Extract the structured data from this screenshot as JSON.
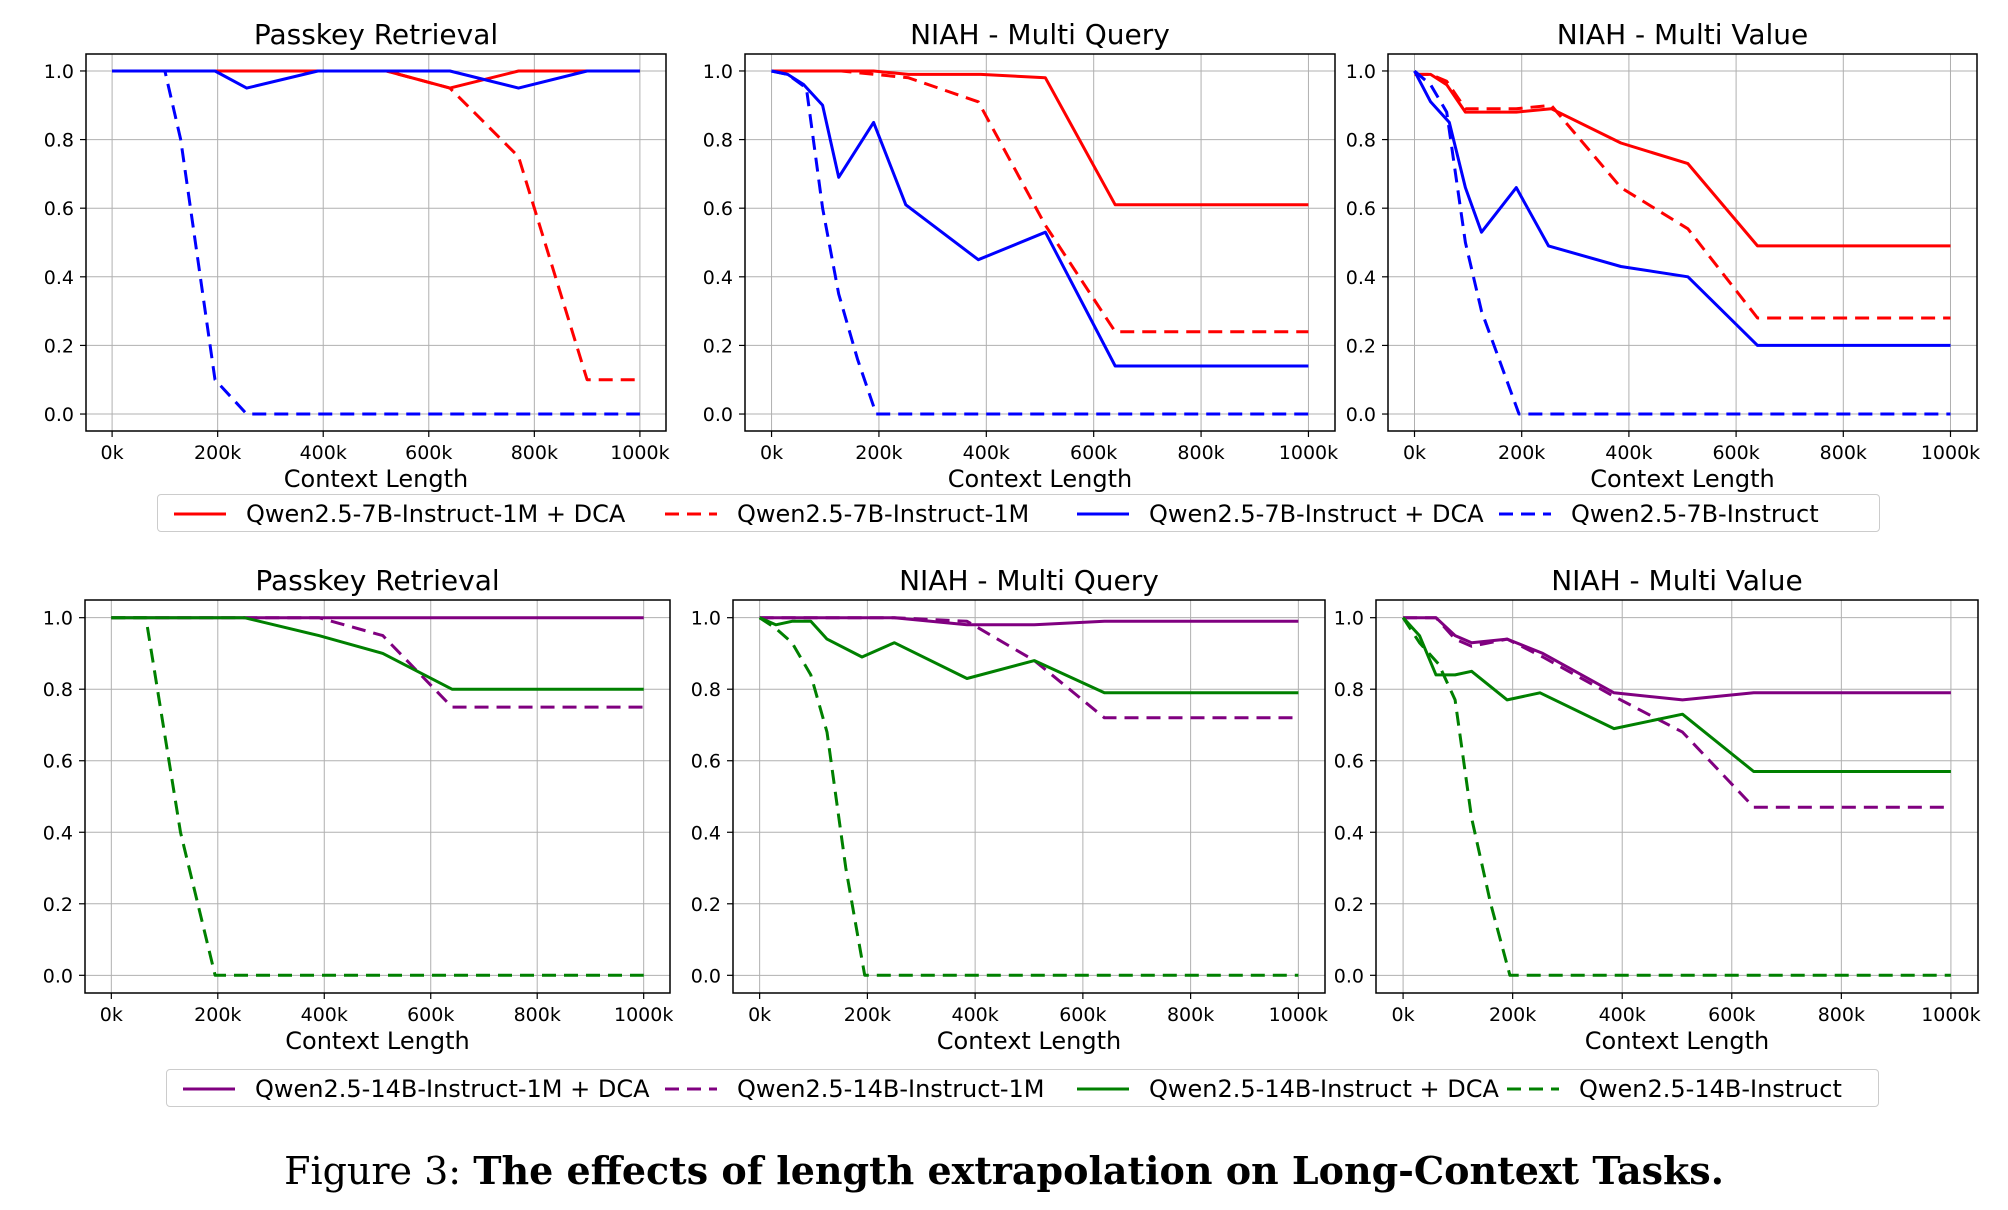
{
  "chart_data": [
    {
      "type": "line",
      "title": "Passkey Retrieval",
      "xlabel": "Context Length",
      "ylabel": "",
      "xlim": [
        0,
        1000
      ],
      "ylim": [
        0,
        1.0
      ],
      "xticks": [
        "0k",
        "200k",
        "400k",
        "600k",
        "800k",
        "1000k"
      ],
      "yticks": [
        "0.0",
        "0.2",
        "0.4",
        "0.6",
        "0.8",
        "1.0"
      ],
      "grid": true,
      "series": [
        {
          "name": "Qwen2.5-7B-Instruct-1M + DCA",
          "color": "#ff0000",
          "dash": "solid",
          "x": [
            0,
            250,
            400,
            520,
            640,
            770,
            900,
            1000
          ],
          "y": [
            1.0,
            1.0,
            1.0,
            1.0,
            0.95,
            1.0,
            1.0,
            1.0
          ]
        },
        {
          "name": "Qwen2.5-7B-Instruct-1M",
          "color": "#ff0000",
          "dash": "dashed",
          "x": [
            0,
            400,
            520,
            640,
            770,
            900,
            1000
          ],
          "y": [
            1.0,
            1.0,
            1.0,
            0.95,
            0.75,
            0.1,
            0.1
          ]
        },
        {
          "name": "Qwen2.5-7B-Instruct + DCA",
          "color": "#0000ff",
          "dash": "solid",
          "x": [
            0,
            195,
            255,
            390,
            520,
            640,
            770,
            900,
            1000
          ],
          "y": [
            1.0,
            1.0,
            0.95,
            1.0,
            1.0,
            1.0,
            0.95,
            1.0,
            1.0
          ]
        },
        {
          "name": "Qwen2.5-7B-Instruct",
          "color": "#0000ff",
          "dash": "dashed",
          "x": [
            0,
            100,
            130,
            195,
            255,
            400,
            600,
            800,
            1000
          ],
          "y": [
            1.0,
            1.0,
            0.8,
            0.1,
            0.0,
            0.0,
            0.0,
            0.0,
            0.0
          ]
        }
      ]
    },
    {
      "type": "line",
      "title": "NIAH - Multi Query",
      "xlabel": "Context Length",
      "ylabel": "",
      "xlim": [
        0,
        1000
      ],
      "ylim": [
        0,
        1.0
      ],
      "xticks": [
        "0k",
        "200k",
        "400k",
        "600k",
        "800k",
        "1000k"
      ],
      "yticks": [
        "0.0",
        "0.2",
        "0.4",
        "0.6",
        "0.8",
        "1.0"
      ],
      "grid": true,
      "series": [
        {
          "name": "Qwen2.5-7B-Instruct-1M + DCA",
          "color": "#ff0000",
          "dash": "solid",
          "x": [
            0,
            190,
            255,
            390,
            510,
            640,
            770,
            1000
          ],
          "y": [
            1.0,
            1.0,
            0.99,
            0.99,
            0.98,
            0.61,
            0.61,
            0.61
          ]
        },
        {
          "name": "Qwen2.5-7B-Instruct-1M",
          "color": "#ff0000",
          "dash": "dashed",
          "x": [
            0,
            130,
            255,
            385,
            510,
            640,
            770,
            1000
          ],
          "y": [
            1.0,
            1.0,
            0.98,
            0.91,
            0.55,
            0.24,
            0.24,
            0.24
          ]
        },
        {
          "name": "Qwen2.5-7B-Instruct + DCA",
          "color": "#0000ff",
          "dash": "solid",
          "x": [
            0,
            30,
            60,
            95,
            125,
            190,
            250,
            385,
            510,
            640,
            770,
            1000
          ],
          "y": [
            1.0,
            0.99,
            0.96,
            0.9,
            0.69,
            0.85,
            0.61,
            0.45,
            0.53,
            0.14,
            0.14,
            0.14
          ]
        },
        {
          "name": "Qwen2.5-7B-Instruct",
          "color": "#0000ff",
          "dash": "dashed",
          "x": [
            0,
            30,
            65,
            95,
            125,
            160,
            195,
            250,
            400,
            600,
            800,
            1000
          ],
          "y": [
            1.0,
            0.99,
            0.95,
            0.6,
            0.35,
            0.16,
            0.0,
            0.0,
            0.0,
            0.0,
            0.0,
            0.0
          ]
        }
      ]
    },
    {
      "type": "line",
      "title": "NIAH - Multi Value",
      "xlabel": "Context Length",
      "ylabel": "",
      "xlim": [
        0,
        1000
      ],
      "ylim": [
        0,
        1.0
      ],
      "xticks": [
        "0k",
        "200k",
        "400k",
        "600k",
        "800k",
        "1000k"
      ],
      "yticks": [
        "0.0",
        "0.2",
        "0.4",
        "0.6",
        "0.8",
        "1.0"
      ],
      "grid": true,
      "series": [
        {
          "name": "Qwen2.5-7B-Instruct-1M + DCA",
          "color": "#ff0000",
          "dash": "solid",
          "x": [
            0,
            30,
            60,
            95,
            125,
            190,
            255,
            385,
            510,
            640,
            770,
            1000
          ],
          "y": [
            0.99,
            0.99,
            0.96,
            0.88,
            0.88,
            0.88,
            0.89,
            0.79,
            0.73,
            0.49,
            0.49,
            0.49
          ]
        },
        {
          "name": "Qwen2.5-7B-Instruct-1M",
          "color": "#ff0000",
          "dash": "dashed",
          "x": [
            0,
            30,
            60,
            95,
            125,
            190,
            255,
            385,
            510,
            640,
            770,
            1000
          ],
          "y": [
            0.99,
            0.99,
            0.97,
            0.89,
            0.89,
            0.89,
            0.9,
            0.66,
            0.54,
            0.28,
            0.28,
            0.28
          ]
        },
        {
          "name": "Qwen2.5-7B-Instruct + DCA",
          "color": "#0000ff",
          "dash": "solid",
          "x": [
            0,
            30,
            65,
            95,
            125,
            190,
            250,
            385,
            510,
            640,
            770,
            1000
          ],
          "y": [
            1.0,
            0.91,
            0.85,
            0.66,
            0.53,
            0.66,
            0.49,
            0.43,
            0.4,
            0.2,
            0.2,
            0.2
          ]
        },
        {
          "name": "Qwen2.5-7B-Instruct",
          "color": "#0000ff",
          "dash": "dashed",
          "x": [
            0,
            30,
            60,
            95,
            125,
            160,
            195,
            250,
            400,
            600,
            800,
            1000
          ],
          "y": [
            1.0,
            0.96,
            0.88,
            0.5,
            0.3,
            0.15,
            0.0,
            0.0,
            0.0,
            0.0,
            0.0,
            0.0
          ]
        }
      ]
    },
    {
      "type": "line",
      "title": "Passkey Retrieval",
      "xlabel": "Context Length",
      "ylabel": "",
      "xlim": [
        0,
        1000
      ],
      "ylim": [
        0,
        1.0
      ],
      "xticks": [
        "0k",
        "200k",
        "400k",
        "600k",
        "800k",
        "1000k"
      ],
      "yticks": [
        "0.0",
        "0.2",
        "0.4",
        "0.6",
        "0.8",
        "1.0"
      ],
      "grid": true,
      "series": [
        {
          "name": "Qwen2.5-14B-Instruct-1M + DCA",
          "color": "#800080",
          "dash": "solid",
          "x": [
            0,
            250,
            500,
            750,
            1000
          ],
          "y": [
            1.0,
            1.0,
            1.0,
            1.0,
            1.0
          ]
        },
        {
          "name": "Qwen2.5-14B-Instruct-1M",
          "color": "#800080",
          "dash": "dashed",
          "x": [
            0,
            390,
            510,
            640,
            770,
            1000
          ],
          "y": [
            1.0,
            1.0,
            0.95,
            0.75,
            0.75,
            0.75
          ]
        },
        {
          "name": "Qwen2.5-14B-Instruct + DCA",
          "color": "#008000",
          "dash": "solid",
          "x": [
            0,
            250,
            390,
            510,
            640,
            770,
            1000
          ],
          "y": [
            1.0,
            1.0,
            0.95,
            0.9,
            0.8,
            0.8,
            0.8
          ]
        },
        {
          "name": "Qwen2.5-14B-Instruct",
          "color": "#008000",
          "dash": "dashed",
          "x": [
            0,
            65,
            130,
            195,
            260,
            400,
            600,
            800,
            1000
          ],
          "y": [
            1.0,
            1.0,
            0.4,
            0.0,
            0.0,
            0.0,
            0.0,
            0.0,
            0.0
          ]
        }
      ]
    },
    {
      "type": "line",
      "title": "NIAH - Multi Query",
      "xlabel": "Context Length",
      "ylabel": "",
      "xlim": [
        0,
        1000
      ],
      "ylim": [
        0,
        1.0
      ],
      "xticks": [
        "0k",
        "200k",
        "400k",
        "600k",
        "800k",
        "1000k"
      ],
      "yticks": [
        "0.0",
        "0.2",
        "0.4",
        "0.6",
        "0.8",
        "1.0"
      ],
      "grid": true,
      "series": [
        {
          "name": "Qwen2.5-14B-Instruct-1M + DCA",
          "color": "#800080",
          "dash": "solid",
          "x": [
            0,
            250,
            385,
            510,
            640,
            770,
            1000
          ],
          "y": [
            1.0,
            1.0,
            0.98,
            0.98,
            0.99,
            0.99,
            0.99
          ]
        },
        {
          "name": "Qwen2.5-14B-Instruct-1M",
          "color": "#800080",
          "dash": "dashed",
          "x": [
            0,
            250,
            385,
            510,
            640,
            770,
            1000
          ],
          "y": [
            1.0,
            1.0,
            0.99,
            0.88,
            0.72,
            0.72,
            0.72
          ]
        },
        {
          "name": "Qwen2.5-14B-Instruct + DCA",
          "color": "#008000",
          "dash": "solid",
          "x": [
            0,
            30,
            60,
            95,
            125,
            190,
            250,
            385,
            510,
            640,
            770,
            1000
          ],
          "y": [
            1.0,
            0.98,
            0.99,
            0.99,
            0.94,
            0.89,
            0.93,
            0.83,
            0.88,
            0.79,
            0.79,
            0.79
          ]
        },
        {
          "name": "Qwen2.5-14B-Instruct",
          "color": "#008000",
          "dash": "dashed",
          "x": [
            0,
            30,
            60,
            95,
            125,
            160,
            195,
            250,
            400,
            600,
            800,
            1000
          ],
          "y": [
            1.0,
            0.97,
            0.93,
            0.84,
            0.68,
            0.3,
            0.0,
            0.0,
            0.0,
            0.0,
            0.0,
            0.0
          ]
        }
      ]
    },
    {
      "type": "line",
      "title": "NIAH - Multi Value",
      "xlabel": "Context Length",
      "ylabel": "",
      "xlim": [
        0,
        1000
      ],
      "ylim": [
        0,
        1.0
      ],
      "xticks": [
        "0k",
        "200k",
        "400k",
        "600k",
        "800k",
        "1000k"
      ],
      "yticks": [
        "0.0",
        "0.2",
        "0.4",
        "0.6",
        "0.8",
        "1.0"
      ],
      "grid": true,
      "series": [
        {
          "name": "Qwen2.5-14B-Instruct-1M + DCA",
          "color": "#800080",
          "dash": "solid",
          "x": [
            0,
            30,
            60,
            95,
            125,
            190,
            255,
            385,
            510,
            640,
            770,
            1000
          ],
          "y": [
            1.0,
            1.0,
            1.0,
            0.95,
            0.93,
            0.94,
            0.9,
            0.79,
            0.77,
            0.79,
            0.79,
            0.79
          ]
        },
        {
          "name": "Qwen2.5-14B-Instruct-1M",
          "color": "#800080",
          "dash": "dashed",
          "x": [
            0,
            30,
            60,
            95,
            125,
            190,
            255,
            385,
            510,
            640,
            770,
            1000
          ],
          "y": [
            1.0,
            1.0,
            1.0,
            0.94,
            0.92,
            0.94,
            0.89,
            0.78,
            0.68,
            0.47,
            0.47,
            0.47
          ]
        },
        {
          "name": "Qwen2.5-14B-Instruct + DCA",
          "color": "#008000",
          "dash": "solid",
          "x": [
            0,
            30,
            60,
            95,
            125,
            190,
            250,
            385,
            510,
            640,
            770,
            1000
          ],
          "y": [
            1.0,
            0.95,
            0.84,
            0.84,
            0.85,
            0.77,
            0.79,
            0.69,
            0.73,
            0.57,
            0.57,
            0.57
          ]
        },
        {
          "name": "Qwen2.5-14B-Instruct",
          "color": "#008000",
          "dash": "dashed",
          "x": [
            0,
            30,
            65,
            95,
            125,
            160,
            195,
            250,
            400,
            600,
            800,
            1000
          ],
          "y": [
            1.0,
            0.93,
            0.87,
            0.77,
            0.44,
            0.2,
            0.0,
            0.0,
            0.0,
            0.0,
            0.0,
            0.0
          ]
        }
      ]
    }
  ],
  "legends": [
    {
      "items": [
        {
          "label": "Qwen2.5-7B-Instruct-1M + DCA",
          "color": "#ff0000",
          "dash": "solid"
        },
        {
          "label": "Qwen2.5-7B-Instruct-1M",
          "color": "#ff0000",
          "dash": "dashed"
        },
        {
          "label": "Qwen2.5-7B-Instruct + DCA",
          "color": "#0000ff",
          "dash": "solid"
        },
        {
          "label": "Qwen2.5-7B-Instruct",
          "color": "#0000ff",
          "dash": "dashed"
        }
      ]
    },
    {
      "items": [
        {
          "label": "Qwen2.5-14B-Instruct-1M + DCA",
          "color": "#800080",
          "dash": "solid"
        },
        {
          "label": "Qwen2.5-14B-Instruct-1M",
          "color": "#800080",
          "dash": "dashed"
        },
        {
          "label": "Qwen2.5-14B-Instruct + DCA",
          "color": "#008000",
          "dash": "solid"
        },
        {
          "label": "Qwen2.5-14B-Instruct",
          "color": "#008000",
          "dash": "dashed"
        }
      ]
    }
  ],
  "caption": {
    "prefix": "Figure 3: ",
    "bold": "The effects of length extrapolation on Long-Context Tasks."
  }
}
